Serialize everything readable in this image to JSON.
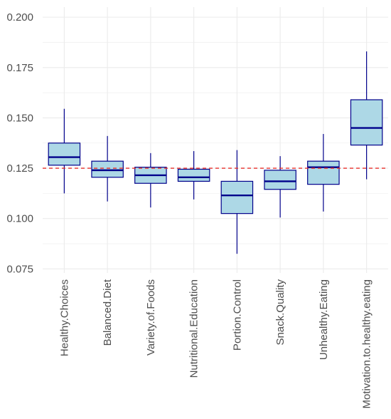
{
  "chart_data": {
    "type": "boxplot",
    "title": "",
    "xlabel": "",
    "ylabel": "",
    "ylim": [
      0.073,
      0.205
    ],
    "yticks": [
      0.075,
      0.1,
      0.125,
      0.15,
      0.175,
      0.2
    ],
    "ytick_labels": [
      "0.075",
      "0.100",
      "0.125",
      "0.150",
      "0.175",
      "0.200"
    ],
    "categories": [
      "Healthy.Choices",
      "Balanced.Diet",
      "Variety.of.Foods",
      "Nutritional.Education",
      "Portion.Control",
      "Snack.Quality",
      "Unhealthy.Eating",
      "Motivation.to.healthy.eating"
    ],
    "boxes": [
      {
        "min": 0.1125,
        "q1": 0.1265,
        "median": 0.1305,
        "q3": 0.1375,
        "max": 0.1545
      },
      {
        "min": 0.1085,
        "q1": 0.1205,
        "median": 0.124,
        "q3": 0.1285,
        "max": 0.141
      },
      {
        "min": 0.1055,
        "q1": 0.1175,
        "median": 0.1215,
        "q3": 0.1255,
        "max": 0.1325
      },
      {
        "min": 0.1095,
        "q1": 0.1185,
        "median": 0.1205,
        "q3": 0.1245,
        "max": 0.1335
      },
      {
        "min": 0.0825,
        "q1": 0.1025,
        "median": 0.1115,
        "q3": 0.1185,
        "max": 0.134
      },
      {
        "min": 0.1005,
        "q1": 0.1145,
        "median": 0.1185,
        "q3": 0.124,
        "max": 0.131
      },
      {
        "min": 0.1035,
        "q1": 0.117,
        "median": 0.1255,
        "q3": 0.1285,
        "max": 0.142
      },
      {
        "min": 0.1195,
        "q1": 0.1365,
        "median": 0.145,
        "q3": 0.159,
        "max": 0.183
      }
    ],
    "reference_line": {
      "y": 0.125,
      "style": "dashed",
      "color": "#e8302a"
    },
    "grid": true,
    "legend": "none",
    "colors": {
      "box_fill": "#add8e6",
      "box_stroke": "#00008b",
      "grid": "#ebebeb",
      "tick_text": "#4d4d4d"
    }
  }
}
